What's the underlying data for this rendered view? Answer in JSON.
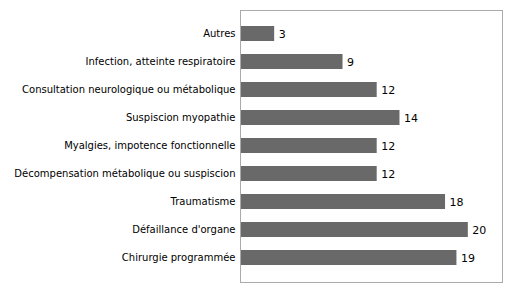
{
  "chart_data": {
    "type": "bar",
    "orientation": "horizontal",
    "categories": [
      "Chirurgie programmée",
      "Défaillance d'organe",
      "Traumatisme",
      "Décompensation métabolique ou suspiscion",
      "Myalgies, impotence fonctionnelle",
      "Suspiscion myopathie",
      "Consultation neurologique ou métabolique",
      "Infection, atteinte respiratoire",
      "Autres"
    ],
    "values": [
      19,
      20,
      18,
      12,
      12,
      14,
      12,
      9,
      3
    ],
    "color": "#696969",
    "xlim": [
      0,
      23
    ],
    "data_labels": true,
    "tick_labels": "y",
    "grid": false
  }
}
